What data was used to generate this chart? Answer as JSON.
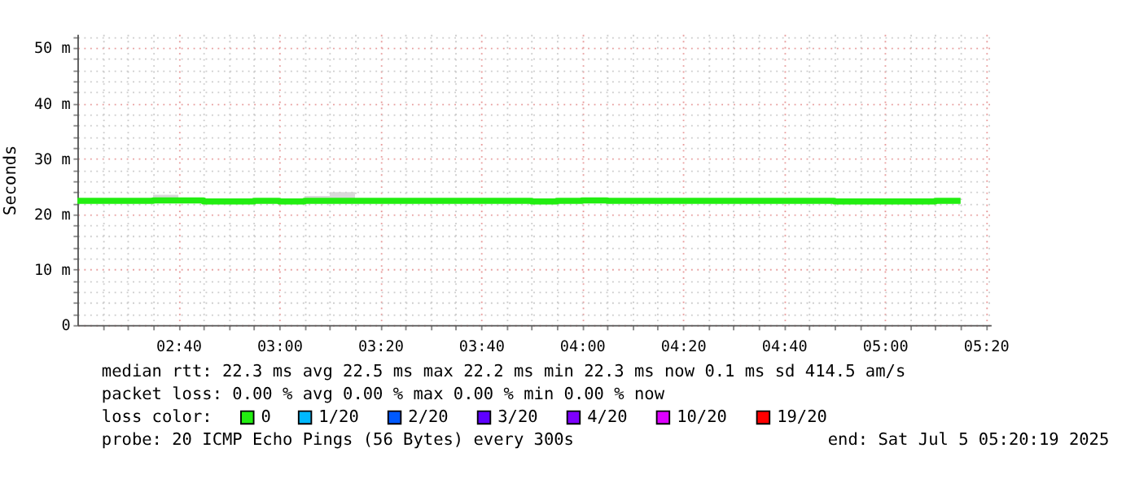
{
  "chart_data": {
    "type": "step",
    "ylabel": "Seconds",
    "x": [
      "2025-07-05T02:20",
      "2025-07-05T02:25",
      "2025-07-05T02:30",
      "2025-07-05T02:35",
      "2025-07-05T02:40",
      "2025-07-05T02:45",
      "2025-07-05T02:50",
      "2025-07-05T02:55",
      "2025-07-05T03:00",
      "2025-07-05T03:05",
      "2025-07-05T03:10",
      "2025-07-05T03:15",
      "2025-07-05T03:20",
      "2025-07-05T03:25",
      "2025-07-05T03:30",
      "2025-07-05T03:35",
      "2025-07-05T03:40",
      "2025-07-05T03:45",
      "2025-07-05T03:50",
      "2025-07-05T03:55",
      "2025-07-05T04:00",
      "2025-07-05T04:05",
      "2025-07-05T04:10",
      "2025-07-05T04:15",
      "2025-07-05T04:20",
      "2025-07-05T04:25",
      "2025-07-05T04:30",
      "2025-07-05T04:35",
      "2025-07-05T04:40",
      "2025-07-05T04:45",
      "2025-07-05T04:50",
      "2025-07-05T04:55",
      "2025-07-05T05:00",
      "2025-07-05T05:05",
      "2025-07-05T05:10",
      "2025-07-05T05:15"
    ],
    "series": [
      {
        "name": "0",
        "color": "#22ee11",
        "values": [
          22.4,
          22.4,
          22.4,
          22.5,
          22.5,
          22.3,
          22.3,
          22.4,
          22.3,
          22.4,
          22.4,
          22.4,
          22.4,
          22.4,
          22.4,
          22.4,
          22.4,
          22.4,
          22.3,
          22.4,
          22.5,
          22.4,
          22.4,
          22.4,
          22.4,
          22.4,
          22.4,
          22.4,
          22.4,
          22.4,
          22.3,
          22.3,
          22.3,
          22.3,
          22.4,
          22.4
        ],
        "lower": [
          22.1,
          22.1,
          22.1,
          22.1,
          22.1,
          22.1,
          22.1,
          22.1,
          22.1,
          22.1,
          22.1,
          22.1,
          22.1,
          22.1,
          22.1,
          22.1,
          22.1,
          22.1,
          22.1,
          22.1,
          22.1,
          22.1,
          22.1,
          22.1,
          22.1,
          22.1,
          22.1,
          22.1,
          22.1,
          22.1,
          22.1,
          22.1,
          22.1,
          22.1,
          22.1,
          22.1
        ],
        "upper": [
          22.6,
          22.6,
          22.6,
          23.5,
          22.7,
          22.6,
          22.7,
          22.7,
          22.7,
          23.3,
          24.0,
          22.7,
          22.7,
          22.6,
          22.6,
          22.7,
          22.7,
          22.7,
          22.6,
          22.7,
          22.7,
          22.6,
          22.6,
          22.6,
          22.6,
          22.7,
          22.7,
          22.7,
          22.6,
          22.6,
          22.6,
          22.6,
          22.6,
          22.6,
          22.6,
          22.6
        ]
      },
      {
        "name": "1/20",
        "color": "#00b8ff",
        "values": [
          null,
          null,
          null,
          null,
          null,
          null,
          null,
          null,
          null,
          null,
          null,
          null,
          null,
          null,
          null,
          null,
          null,
          null,
          null,
          null,
          null,
          null,
          null,
          null,
          null,
          null,
          null,
          null,
          null,
          null,
          null,
          null,
          null,
          null,
          null,
          null
        ]
      },
      {
        "name": "2/20",
        "color": "#0059ff",
        "values": [
          null,
          null,
          null,
          null,
          null,
          null,
          null,
          null,
          null,
          null,
          null,
          null,
          null,
          null,
          null,
          null,
          null,
          null,
          null,
          null,
          null,
          null,
          null,
          null,
          null,
          null,
          null,
          null,
          null,
          null,
          null,
          null,
          null,
          null,
          null,
          null
        ]
      },
      {
        "name": "3/20",
        "color": "#5e00ff",
        "values": [
          null,
          null,
          null,
          null,
          null,
          null,
          null,
          null,
          null,
          null,
          null,
          null,
          null,
          null,
          null,
          null,
          null,
          null,
          null,
          null,
          null,
          null,
          null,
          null,
          null,
          null,
          null,
          null,
          null,
          null,
          null,
          null,
          null,
          null,
          null,
          null
        ]
      },
      {
        "name": "4/20",
        "color": "#7e00ff",
        "values": [
          null,
          null,
          null,
          null,
          null,
          null,
          null,
          null,
          null,
          null,
          null,
          null,
          null,
          null,
          null,
          null,
          null,
          null,
          null,
          null,
          null,
          null,
          null,
          null,
          null,
          null,
          null,
          null,
          null,
          null,
          null,
          null,
          null,
          null,
          null,
          null
        ]
      },
      {
        "name": "10/20",
        "color": "#dd00ff",
        "values": [
          null,
          null,
          null,
          null,
          null,
          null,
          null,
          null,
          null,
          null,
          null,
          null,
          null,
          null,
          null,
          null,
          null,
          null,
          null,
          null,
          null,
          null,
          null,
          null,
          null,
          null,
          null,
          null,
          null,
          null,
          null,
          null,
          null,
          null,
          null,
          null
        ]
      },
      {
        "name": "19/20",
        "color": "#ff0000",
        "values": [
          null,
          null,
          null,
          null,
          null,
          null,
          null,
          null,
          null,
          null,
          null,
          null,
          null,
          null,
          null,
          null,
          null,
          null,
          null,
          null,
          null,
          null,
          null,
          null,
          null,
          null,
          null,
          null,
          null,
          null,
          null,
          null,
          null,
          null,
          null,
          null
        ]
      }
    ],
    "legend_title": "loss color:",
    "legend": "bottom",
    "grid": true,
    "ylim": [
      0,
      52.5
    ],
    "yticks": [
      0,
      {
        "value": 2,
        "label": null
      },
      {
        "value": 4,
        "label": null
      },
      {
        "value": 6,
        "label": null
      },
      {
        "value": 8,
        "label": null
      },
      {
        "value": 10,
        "label": "10 m"
      },
      {
        "value": 12,
        "label": null
      },
      {
        "value": 14,
        "label": null
      },
      {
        "value": 16,
        "label": null
      },
      {
        "value": 18,
        "label": null
      },
      {
        "value": 20,
        "label": "20 m"
      },
      {
        "value": 22,
        "label": null
      },
      {
        "value": 24,
        "label": null
      },
      {
        "value": 26,
        "label": null
      },
      {
        "value": 28,
        "label": null
      },
      {
        "value": 30,
        "label": "30 m"
      },
      {
        "value": 32,
        "label": null
      },
      {
        "value": 34,
        "label": null
      },
      {
        "value": 36,
        "label": null
      },
      {
        "value": 38,
        "label": null
      },
      {
        "value": 40,
        "label": "40 m"
      },
      {
        "value": 42,
        "label": null
      },
      {
        "value": 44,
        "label": null
      },
      {
        "value": 46,
        "label": null
      },
      {
        "value": 48,
        "label": null
      },
      {
        "value": 50,
        "label": "50 m"
      },
      {
        "value": 52,
        "label": null
      }
    ],
    "xlim": [
      "2025-07-05T02:20",
      "2025-07-05T05:21"
    ],
    "xticks": [
      {
        "value": "2025-07-05T02:25",
        "label": null
      },
      {
        "value": "2025-07-05T02:30",
        "label": null
      },
      {
        "value": "2025-07-05T02:35",
        "label": null
      },
      {
        "value": "2025-07-05T02:40",
        "label": "02:40"
      },
      {
        "value": "2025-07-05T02:45",
        "label": null
      },
      {
        "value": "2025-07-05T02:50",
        "label": null
      },
      {
        "value": "2025-07-05T02:55",
        "label": null
      },
      {
        "value": "2025-07-05T03:00",
        "label": "03:00"
      },
      {
        "value": "2025-07-05T03:05",
        "label": null
      },
      {
        "value": "2025-07-05T03:10",
        "label": null
      },
      {
        "value": "2025-07-05T03:15",
        "label": null
      },
      {
        "value": "2025-07-05T03:20",
        "label": "03:20"
      },
      {
        "value": "2025-07-05T03:25",
        "label": null
      },
      {
        "value": "2025-07-05T03:30",
        "label": null
      },
      {
        "value": "2025-07-05T03:35",
        "label": null
      },
      {
        "value": "2025-07-05T03:40",
        "label": "03:40"
      },
      {
        "value": "2025-07-05T03:45",
        "label": null
      },
      {
        "value": "2025-07-05T03:50",
        "label": null
      },
      {
        "value": "2025-07-05T03:55",
        "label": null
      },
      {
        "value": "2025-07-05T04:00",
        "label": "04:00"
      },
      {
        "value": "2025-07-05T04:05",
        "label": null
      },
      {
        "value": "2025-07-05T04:10",
        "label": null
      },
      {
        "value": "2025-07-05T04:15",
        "label": null
      },
      {
        "value": "2025-07-05T04:20",
        "label": "04:20"
      },
      {
        "value": "2025-07-05T04:25",
        "label": null
      },
      {
        "value": "2025-07-05T04:30",
        "label": null
      },
      {
        "value": "2025-07-05T04:35",
        "label": null
      },
      {
        "value": "2025-07-05T04:40",
        "label": "04:40"
      },
      {
        "value": "2025-07-05T04:45",
        "label": null
      },
      {
        "value": "2025-07-05T04:50",
        "label": null
      },
      {
        "value": "2025-07-05T04:55",
        "label": null
      },
      {
        "value": "2025-07-05T05:00",
        "label": "05:00"
      },
      {
        "value": "2025-07-05T05:05",
        "label": null
      },
      {
        "value": "2025-07-05T05:10",
        "label": null
      },
      {
        "value": "2025-07-05T05:15",
        "label": null
      },
      {
        "value": "2025-07-05T05:20",
        "label": "05:20"
      }
    ],
    "annotations": [
      "median rtt:  22.3 ms avg  22.5 ms max  22.2 ms min  22.3 ms now  0.1 ms sd  414.5   am/s",
      "packet loss: 0.00 % avg  0.00 % max  0.00 % min  0.00 % now",
      "probe:       20 ICMP Echo Pings (56 Bytes) every 300s",
      "end: Sat Jul  5 05:20:19 2025"
    ]
  }
}
